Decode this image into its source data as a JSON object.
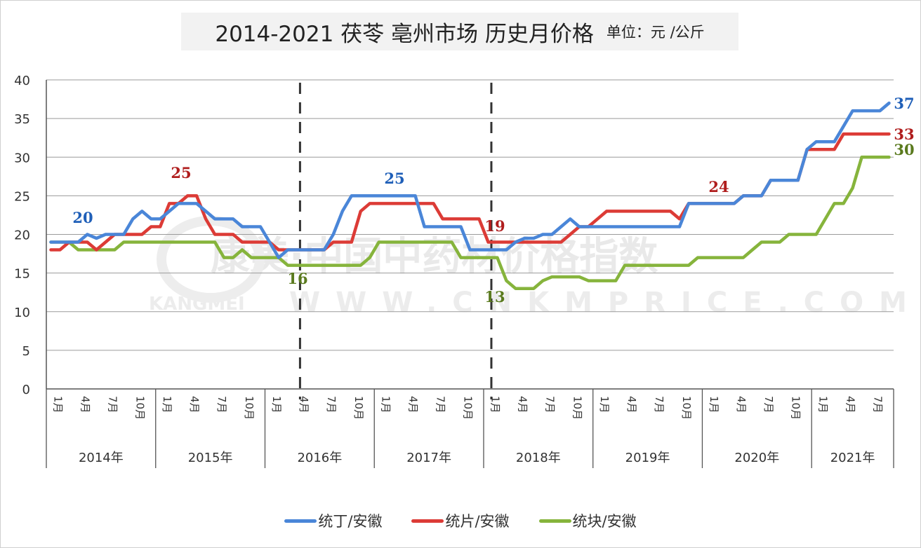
{
  "title": {
    "main": "2014-2021 茯苓 亳州市场 历史月价格",
    "unit": "单位：元 /公斤"
  },
  "watermark": {
    "line1": "康美·中国中药材价格指数",
    "line2_left": "KANGMEI",
    "line2_right": "WWW.CNKMPRICE.COM"
  },
  "legend": [
    {
      "label": "统丁/安徽",
      "color": "#4a86d8"
    },
    {
      "label": "统片/安徽",
      "color": "#dc3b36"
    },
    {
      "label": "统块/安徽",
      "color": "#86b43c"
    }
  ],
  "chart_data": {
    "type": "line",
    "title": "2014-2021 茯苓 亳州市场 历史月价格",
    "unit": "单位：元/公斤",
    "xlabel": "",
    "ylabel": "",
    "ylim": [
      0,
      40
    ],
    "yticks": [
      0,
      5,
      10,
      15,
      20,
      25,
      30,
      35,
      40
    ],
    "grid": true,
    "legend_position": "bottom",
    "x_month_tick_labels": [
      "1月",
      "4月",
      "7月",
      "10月"
    ],
    "years": [
      {
        "label": "2014年",
        "months": 12
      },
      {
        "label": "2015年",
        "months": 12
      },
      {
        "label": "2016年",
        "months": 12
      },
      {
        "label": "2017年",
        "months": 12
      },
      {
        "label": "2018年",
        "months": 12
      },
      {
        "label": "2019年",
        "months": 12
      },
      {
        "label": "2020年",
        "months": 12
      },
      {
        "label": "2021年",
        "months": 9
      }
    ],
    "dashed_vertical_lines_at_month_index": [
      27.5,
      48.5
    ],
    "series": [
      {
        "name": "统丁/安徽",
        "color": "#4a86d8",
        "values": [
          19,
          19,
          19,
          19,
          20,
          19.5,
          20,
          20,
          20,
          22,
          23,
          22,
          22,
          23,
          24,
          24,
          24,
          23,
          22,
          22,
          22,
          21,
          21,
          21,
          19,
          17,
          18,
          18,
          18,
          18,
          18,
          20,
          23,
          25,
          25,
          25,
          25,
          25,
          25,
          25,
          25,
          21,
          21,
          21,
          21,
          21,
          18,
          18,
          18,
          18,
          18,
          19,
          19.5,
          19.5,
          20,
          20,
          21,
          22,
          21,
          21,
          21,
          21,
          21,
          21,
          21,
          21,
          21,
          21,
          21,
          21,
          24,
          24,
          24,
          24,
          24,
          24,
          25,
          25,
          25,
          27,
          27,
          27,
          27,
          31,
          32,
          32,
          32,
          34,
          36,
          36,
          36,
          36,
          37
        ]
      },
      {
        "name": "统片/安徽",
        "color": "#dc3b36",
        "values": [
          18,
          18,
          19,
          19,
          19,
          18,
          19,
          20,
          20,
          20,
          20,
          21,
          21,
          24,
          24,
          25,
          25,
          22,
          20,
          20,
          20,
          19,
          19,
          19,
          19,
          18,
          18,
          18,
          18,
          18,
          18,
          19,
          19,
          19,
          23,
          24,
          24,
          24,
          24,
          24,
          24,
          24,
          24,
          22,
          22,
          22,
          22,
          22,
          19,
          19,
          19,
          19,
          19,
          19,
          19,
          19,
          19,
          20,
          21,
          21,
          22,
          23,
          23,
          23,
          23,
          23,
          23,
          23,
          23,
          22,
          24,
          24,
          24,
          24,
          24,
          24,
          25,
          25,
          25,
          27,
          27,
          27,
          27,
          31,
          31,
          31,
          31,
          33,
          33,
          33,
          33,
          33,
          33
        ]
      },
      {
        "name": "统块/安徽",
        "color": "#86b43c",
        "values": [
          19,
          19,
          19,
          18,
          18,
          18,
          18,
          18,
          19,
          19,
          19,
          19,
          19,
          19,
          19,
          19,
          19,
          19,
          19,
          17,
          17,
          18,
          17,
          17,
          17,
          17,
          16,
          16,
          16,
          16,
          16,
          16,
          16,
          16,
          16,
          17,
          19,
          19,
          19,
          19,
          19,
          19,
          19,
          19,
          19,
          17,
          17,
          17,
          17,
          17,
          14,
          13,
          13,
          13,
          14,
          14.5,
          14.5,
          14.5,
          14.5,
          14,
          14,
          14,
          14,
          16,
          16,
          16,
          16,
          16,
          16,
          16,
          16,
          17,
          17,
          17,
          17,
          17,
          17,
          18,
          19,
          19,
          19,
          20,
          20,
          20,
          20,
          22,
          24,
          24,
          26,
          30,
          30,
          30,
          30
        ]
      }
    ],
    "annotations": [
      {
        "text": "20",
        "series": "统丁/安徽",
        "color": "#1f5fb8"
      },
      {
        "text": "25",
        "series": "统片/安徽",
        "color": "#b01e1e"
      },
      {
        "text": "16",
        "series": "统块/安徽",
        "color": "#5a7a1e"
      },
      {
        "text": "25",
        "series": "统丁/安徽",
        "color": "#1f5fb8"
      },
      {
        "text": "19",
        "series": "统片/安徽",
        "color": "#b01e1e"
      },
      {
        "text": "13",
        "series": "统块/安徽",
        "color": "#5a7a1e"
      },
      {
        "text": "24",
        "series": "统片/安徽",
        "color": "#b01e1e"
      },
      {
        "text": "37",
        "series": "统丁/安徽",
        "color": "#1f5fb8"
      },
      {
        "text": "33",
        "series": "统片/安徽",
        "color": "#b01e1e"
      },
      {
        "text": "30",
        "series": "统块/安徽",
        "color": "#5a7a1e"
      }
    ]
  }
}
